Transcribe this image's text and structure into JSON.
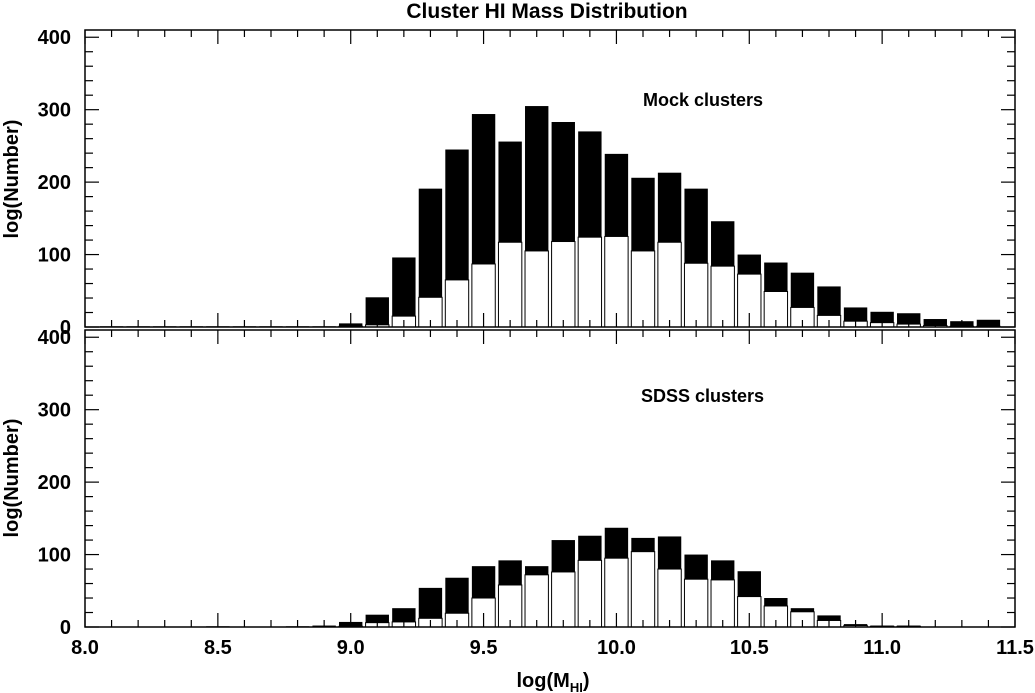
{
  "chart_data": {
    "type": "bar",
    "title": "Cluster HI Mass Distribution",
    "xlabel": "log(M",
    "xlabel_sub": "HI",
    "xlabel_close": ")",
    "xlim": [
      8.0,
      11.5
    ],
    "xticks": [
      "8.0",
      "8.5",
      "9.0",
      "9.5",
      "10.0",
      "10.5",
      "11.0",
      "11.5"
    ],
    "bin_width": 0.1,
    "panels": [
      {
        "name": "mock",
        "annotation": "Mock clusters",
        "ylabel": "log(Number)",
        "ylim": [
          0,
          410
        ],
        "yticks": [
          "0",
          "100",
          "200",
          "300",
          "400"
        ],
        "bin_centers": [
          8.1,
          8.2,
          8.3,
          8.4,
          8.5,
          8.6,
          8.7,
          8.8,
          8.9,
          9.0,
          9.1,
          9.2,
          9.3,
          9.4,
          9.5,
          9.6,
          9.7,
          9.8,
          9.9,
          10.0,
          10.1,
          10.2,
          10.3,
          10.4,
          10.5,
          10.6,
          10.7,
          10.8,
          10.9,
          11.0,
          11.1,
          11.2,
          11.3,
          11.4
        ],
        "series": [
          {
            "name": "total",
            "color": "#000000",
            "values": [
              1,
              1,
              1,
              1,
              1,
              1,
              1,
              1,
              1,
              5,
              41,
              96,
              191,
              245,
              294,
              256,
              305,
              283,
              270,
              239,
              206,
              213,
              191,
              146,
              100,
              89,
              75,
              56,
              27,
              21,
              19,
              11,
              8,
              10
            ]
          },
          {
            "name": "subset",
            "color": "#ffffff",
            "values": [
              0,
              0,
              0,
              0,
              0,
              0,
              0,
              0,
              0,
              1,
              3,
              15,
              41,
              65,
              87,
              117,
              105,
              118,
              124,
              125,
              105,
              117,
              88,
              84,
              73,
              49,
              27,
              16,
              8,
              6,
              4,
              2,
              1,
              1
            ]
          }
        ]
      },
      {
        "name": "sdss",
        "annotation": "SDSS clusters",
        "ylabel": "log(Number)",
        "ylim": [
          0,
          410
        ],
        "yticks": [
          "0",
          "100",
          "200",
          "300",
          "400"
        ],
        "bin_centers": [
          8.1,
          8.2,
          8.3,
          8.4,
          8.5,
          8.6,
          8.7,
          8.8,
          8.9,
          9.0,
          9.1,
          9.2,
          9.3,
          9.4,
          9.5,
          9.6,
          9.7,
          9.8,
          9.9,
          10.0,
          10.1,
          10.2,
          10.3,
          10.4,
          10.5,
          10.6,
          10.7,
          10.8,
          10.9,
          11.0,
          11.1,
          11.2,
          11.3,
          11.4
        ],
        "series": [
          {
            "name": "total",
            "color": "#000000",
            "values": [
              0,
              0,
              0,
              0,
              1,
              0,
              0,
              1,
              2,
              7,
              17,
              26,
              54,
              68,
              84,
              92,
              84,
              120,
              126,
              137,
              123,
              125,
              100,
              92,
              77,
              40,
              26,
              16,
              4,
              2,
              2,
              0,
              0,
              0
            ]
          },
          {
            "name": "subset",
            "color": "#ffffff",
            "values": [
              0,
              0,
              0,
              0,
              0,
              0,
              0,
              0,
              0,
              1,
              6,
              7,
              12,
              19,
              40,
              58,
              72,
              76,
              92,
              95,
              104,
              80,
              66,
              65,
              42,
              29,
              21,
              9,
              2,
              1,
              1,
              0,
              0,
              0
            ]
          }
        ]
      }
    ]
  }
}
